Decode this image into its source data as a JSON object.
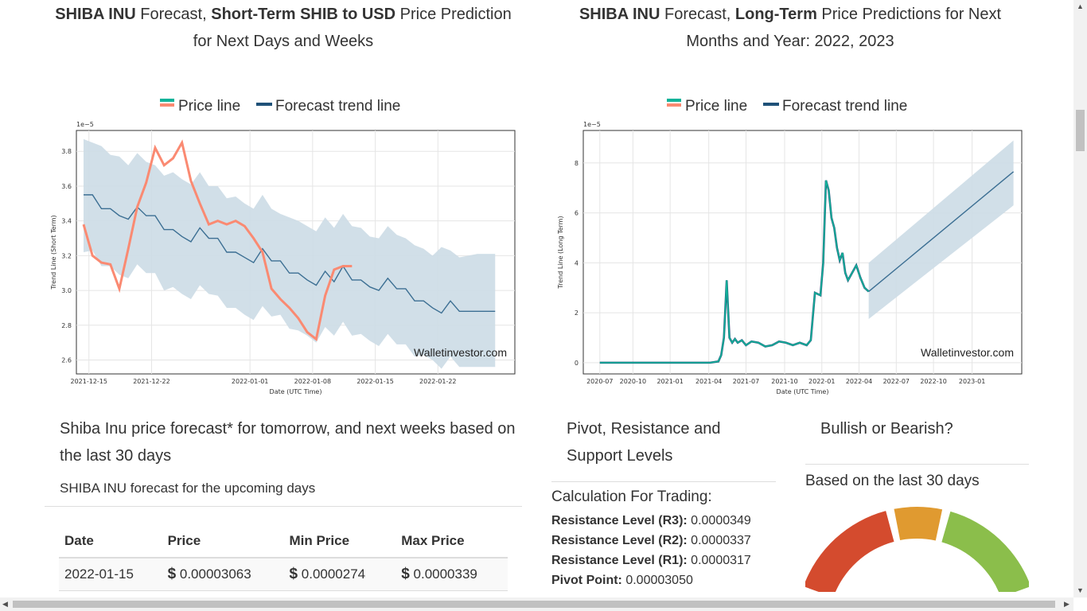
{
  "headings": {
    "short": {
      "bold1": "SHIBA INU",
      "t1": " Forecast, ",
      "bold2": "Short-Term SHIB to USD",
      "t2": " Price Prediction for Next Days and Weeks"
    },
    "long": {
      "bold1": "SHIBA INU",
      "t1": " Forecast, ",
      "bold2": "Long-Term",
      "t2": " Price Predictions for Next Months and Year: 2022, 2023"
    }
  },
  "chart_data": [
    {
      "type": "line",
      "legend": [
        "Price line",
        "Forecast trend line"
      ],
      "legend_position": "top",
      "ylabel": "Trend Line (Short Term)",
      "xlabel": "Date (UTC Time)",
      "scale_label": "1e−5",
      "watermark": "Walletinvestor.com",
      "x_ticks": [
        "2021-12-15",
        "2021-12-22",
        "2022-01-01",
        "2022-01-08",
        "2022-01-15",
        "2022-01-22"
      ],
      "y_ticks": [
        "2.6",
        "2.8",
        "3.0",
        "3.2",
        "3.4",
        "3.6",
        "3.8"
      ],
      "ylim": [
        2.52,
        3.92
      ],
      "xlim": [
        -0.8,
        48.2
      ],
      "grid": true,
      "series": [
        {
          "name": "Price line",
          "x": [
            0,
            1,
            2,
            3,
            4,
            5,
            6,
            7,
            8,
            9,
            10,
            11,
            12,
            13,
            14,
            15,
            16,
            17,
            18,
            19,
            20,
            21,
            22,
            23,
            24,
            25,
            26,
            27,
            28,
            29,
            30
          ],
          "values": [
            3.38,
            3.2,
            3.16,
            3.15,
            3.01,
            3.24,
            3.48,
            3.62,
            3.82,
            3.72,
            3.76,
            3.85,
            3.63,
            3.5,
            3.38,
            3.4,
            3.38,
            3.4,
            3.37,
            3.3,
            3.22,
            3.01,
            2.95,
            2.9,
            2.84,
            2.76,
            2.72,
            2.97,
            3.12,
            3.14,
            3.14
          ]
        },
        {
          "name": "Forecast trend line",
          "x": [
            0,
            1,
            2,
            3,
            4,
            5,
            6,
            7,
            8,
            9,
            10,
            11,
            12,
            13,
            14,
            15,
            16,
            17,
            18,
            19,
            20,
            21,
            22,
            23,
            24,
            25,
            26,
            27,
            28,
            29,
            30,
            31,
            32,
            33,
            34,
            35,
            36,
            37,
            38,
            39,
            40,
            41,
            42,
            43,
            44,
            45,
            46
          ],
          "values": [
            3.55,
            3.55,
            3.47,
            3.47,
            3.43,
            3.41,
            3.48,
            3.43,
            3.43,
            3.35,
            3.35,
            3.31,
            3.28,
            3.36,
            3.3,
            3.3,
            3.22,
            3.22,
            3.19,
            3.16,
            3.24,
            3.17,
            3.17,
            3.1,
            3.1,
            3.06,
            3.03,
            3.11,
            3.05,
            3.14,
            3.06,
            3.06,
            3.02,
            3.0,
            3.07,
            3.01,
            3.01,
            2.94,
            2.94,
            2.9,
            2.87,
            2.94,
            2.88,
            2.88,
            2.88,
            2.88,
            2.88
          ],
          "upper": [
            3.87,
            3.85,
            3.83,
            3.78,
            3.77,
            3.72,
            3.79,
            3.74,
            3.72,
            3.66,
            3.68,
            3.64,
            3.61,
            3.68,
            3.6,
            3.6,
            3.53,
            3.54,
            3.5,
            3.47,
            3.55,
            3.47,
            3.44,
            3.42,
            3.4,
            3.37,
            3.34,
            3.42,
            3.36,
            3.44,
            3.37,
            3.36,
            3.31,
            3.3,
            3.37,
            3.32,
            3.3,
            3.26,
            3.24,
            3.2,
            3.25,
            3.23,
            3.19,
            3.2,
            3.21,
            3.21,
            3.21
          ],
          "lower": [
            3.22,
            3.23,
            3.14,
            3.14,
            3.09,
            3.07,
            3.15,
            3.1,
            3.1,
            3.0,
            3.02,
            2.98,
            2.95,
            3.03,
            2.98,
            2.97,
            2.9,
            2.9,
            2.86,
            2.83,
            2.91,
            2.85,
            2.86,
            2.78,
            2.77,
            2.74,
            2.7,
            2.79,
            2.74,
            2.82,
            2.74,
            2.75,
            2.71,
            2.68,
            2.75,
            2.69,
            2.69,
            2.62,
            2.63,
            2.6,
            2.55,
            2.62,
            2.56,
            2.56,
            2.56,
            2.56,
            2.56
          ]
        }
      ]
    },
    {
      "type": "line",
      "legend": [
        "Price line",
        "Forecast trend line"
      ],
      "legend_position": "top",
      "ylabel": "Trend Line (Long Term)",
      "xlabel": "Date (UTC Time)",
      "scale_label": "1e−5",
      "watermark": "Walletinvestor.com",
      "x_ticks": [
        "2020-07",
        "2020-10",
        "2021-01",
        "2021-04",
        "2021-07",
        "2021-10",
        "2022-01",
        "2022-04",
        "2022-07",
        "2022-10",
        "2023-01"
      ],
      "y_ticks": [
        "0",
        "2",
        "4",
        "6",
        "8"
      ],
      "ylim": [
        -0.45,
        9.3
      ],
      "xlim": [
        -1.2,
        30.6
      ],
      "grid": true,
      "series": [
        {
          "name": "Price line",
          "x": [
            0,
            2,
            4,
            6,
            8,
            8.6,
            8.8,
            9.0,
            9.2,
            9.4,
            9.6,
            9.8,
            10.0,
            10.3,
            10.6,
            11,
            11.5,
            12,
            12.5,
            13,
            13.5,
            14,
            14.5,
            15,
            15.3,
            15.6,
            16,
            16.2,
            16.4,
            16.6,
            16.8,
            17.0,
            17.2,
            17.4,
            17.6,
            17.8,
            18.0,
            18.3,
            18.6,
            18.9,
            19.2,
            19.5
          ],
          "values": [
            0,
            0,
            0,
            0,
            0,
            0.05,
            0.3,
            1.0,
            3.3,
            1.0,
            0.8,
            0.95,
            0.8,
            0.9,
            0.7,
            0.85,
            0.8,
            0.65,
            0.7,
            0.85,
            0.8,
            0.7,
            0.8,
            0.7,
            0.9,
            2.8,
            2.7,
            4.0,
            7.3,
            6.9,
            5.8,
            5.4,
            4.6,
            4.1,
            4.4,
            3.6,
            3.3,
            3.6,
            3.9,
            3.4,
            3.0,
            2.85
          ]
        },
        {
          "name": "Forecast trend line",
          "x": [
            19.5,
            30.0
          ],
          "values": [
            2.85,
            7.65
          ],
          "upper": [
            4.0,
            8.9
          ],
          "lower": [
            1.75,
            6.3
          ]
        }
      ]
    }
  ],
  "short_forecast": {
    "title": "Shiba Inu price forecast* for tomorrow, and next weeks based on the last 30 days",
    "subtitle": "SHIBA INU forecast for the upcoming days",
    "headers": [
      "Date",
      "Price",
      "Min Price",
      "Max Price"
    ],
    "rows": [
      {
        "date": "2022-01-15",
        "currency": "$",
        "price": "0.00003063",
        "min": "0.0000274",
        "max": "0.0000339"
      }
    ]
  },
  "pivot": {
    "title": "Pivot, Resistance and Support Levels",
    "calc": "Calculation For Trading:",
    "levels": [
      {
        "label": "Resistance Level (R3):",
        "value": " 0.0000349"
      },
      {
        "label": "Resistance Level (R2):",
        "value": " 0.0000337"
      },
      {
        "label": "Resistance Level (R1):",
        "value": " 0.0000317"
      },
      {
        "label": "Pivot Point:",
        "value": " 0.00003050"
      }
    ]
  },
  "bullish": {
    "title": "Bullish or Bearish?",
    "subtitle": "Based on the last 30 days",
    "colors": {
      "bear": "#d44b2e",
      "neutral": "#e09a30",
      "bull": "#8bbe4b"
    }
  },
  "colors": {
    "price_line_short": "#fa8a72",
    "price_line_long": "#12b39a",
    "trend_line": "#3c6f93",
    "band": "#ccdbe5"
  }
}
